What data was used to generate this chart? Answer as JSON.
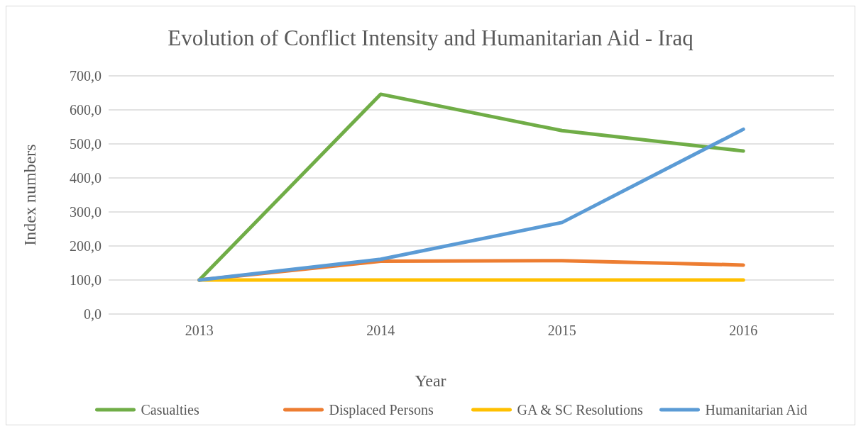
{
  "chart_data": {
    "type": "line",
    "title": "Evolution of Conflict Intensity and Humanitarian Aid - Iraq",
    "xlabel": "Year",
    "ylabel": "Index numbers",
    "categories": [
      "2013",
      "2014",
      "2015",
      "2016"
    ],
    "series": [
      {
        "name": "Casualties",
        "color": "#70ad47",
        "values": [
          100,
          646,
          539,
          479
        ]
      },
      {
        "name": "Displaced Persons",
        "color": "#ed7d31",
        "values": [
          100,
          155,
          157,
          144
        ]
      },
      {
        "name": "GA & SC Resolutions",
        "color": "#ffc000",
        "values": [
          100,
          100,
          100,
          100
        ]
      },
      {
        "name": "Humanitarian Aid",
        "color": "#5b9bd5",
        "values": [
          100,
          161,
          269,
          543
        ]
      }
    ],
    "ylim": [
      0,
      700
    ],
    "yticks": [
      {
        "value": 0,
        "label": "0,0"
      },
      {
        "value": 100,
        "label": "100,0"
      },
      {
        "value": 200,
        "label": "200,0"
      },
      {
        "value": 300,
        "label": "300,0"
      },
      {
        "value": 400,
        "label": "400,0"
      },
      {
        "value": 500,
        "label": "500,0"
      },
      {
        "value": 600,
        "label": "600,0"
      },
      {
        "value": 700,
        "label": "700,0"
      }
    ],
    "grid": "y",
    "legend": "bottom",
    "marker": "none",
    "line_style": "solid"
  }
}
